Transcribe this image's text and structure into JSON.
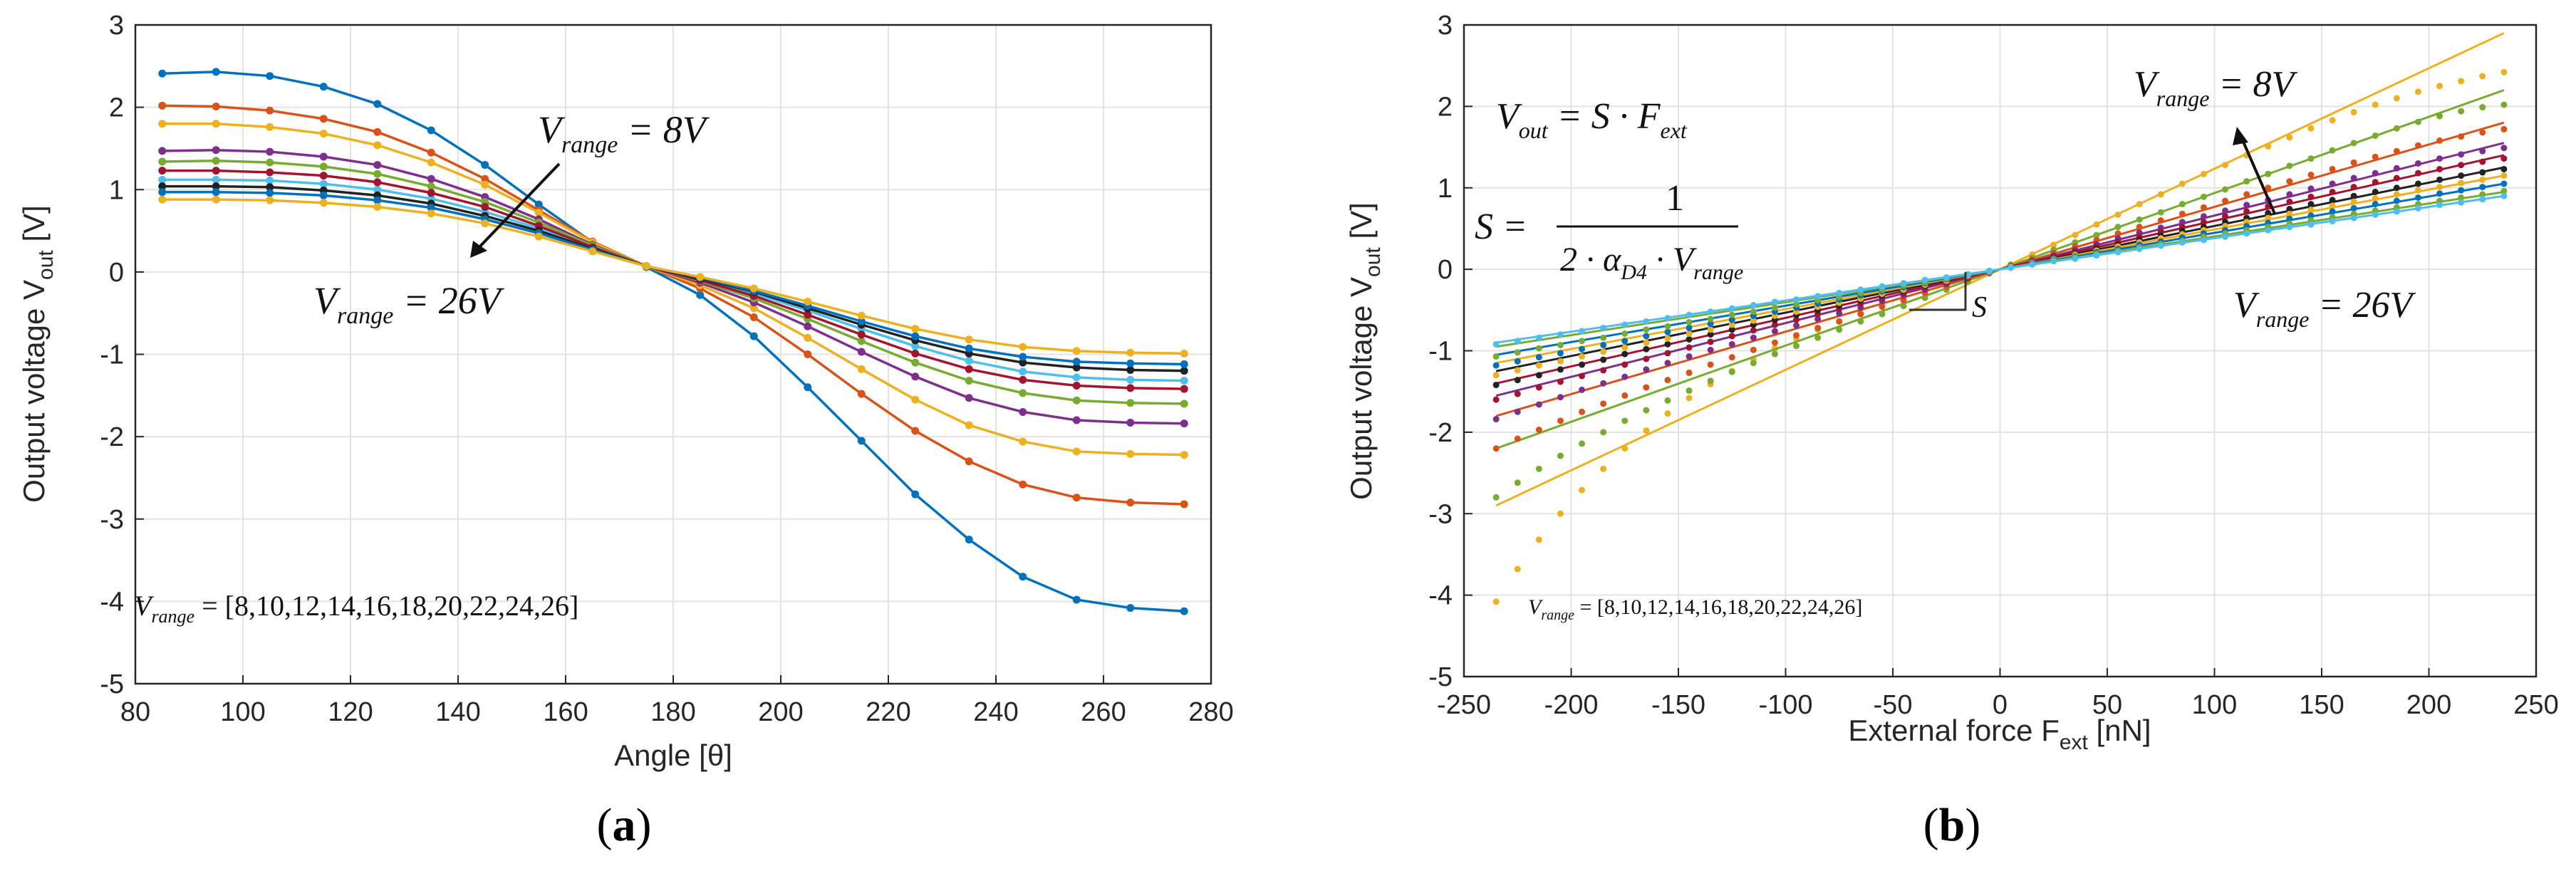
{
  "chart_data": [
    {
      "type": "line",
      "panel_label": "(a)",
      "caption": {
        "open": "(",
        "letter": "a",
        "close": ")"
      },
      "xlabel": "Angle [θ]",
      "ylabel": {
        "main": "Output voltage V",
        "sub": "out"
      },
      "xlim": [
        80,
        280
      ],
      "ylim": [
        -5,
        3
      ],
      "xticks": [
        80,
        100,
        120,
        140,
        160,
        180,
        200,
        220,
        240,
        260,
        280
      ],
      "yticks": [
        -5,
        -4,
        -3,
        -2,
        -1,
        0,
        1,
        2,
        3
      ],
      "grid": true,
      "x": [
        85,
        95,
        105,
        115,
        125,
        135,
        145,
        155,
        165,
        175,
        185,
        195,
        205,
        215,
        225,
        235,
        245,
        255,
        265,
        275
      ],
      "series": [
        {
          "name": "Vrange = 8",
          "color": "#0072bd",
          "values": [
            2.41,
            2.43,
            2.38,
            2.25,
            2.04,
            1.72,
            1.3,
            0.82,
            0.36,
            0.06,
            -0.28,
            -0.78,
            -1.4,
            -2.05,
            -2.7,
            -3.25,
            -3.7,
            -3.98,
            -4.08,
            -4.12
          ]
        },
        {
          "name": "Vrange = 10",
          "color": "#d95319",
          "values": [
            2.02,
            2.01,
            1.96,
            1.86,
            1.7,
            1.45,
            1.13,
            0.75,
            0.37,
            0.07,
            -0.2,
            -0.55,
            -1.0,
            -1.48,
            -1.93,
            -2.3,
            -2.58,
            -2.74,
            -2.8,
            -2.82
          ]
        },
        {
          "name": "Vrange = 12",
          "color": "#edb120",
          "values": [
            1.8,
            1.8,
            1.76,
            1.68,
            1.54,
            1.33,
            1.06,
            0.72,
            0.36,
            0.07,
            -0.16,
            -0.44,
            -0.8,
            -1.18,
            -1.55,
            -1.86,
            -2.06,
            -2.18,
            -2.21,
            -2.22
          ]
        },
        {
          "name": "Vrange = 14",
          "color": "#7e2f8e",
          "values": [
            1.47,
            1.48,
            1.46,
            1.4,
            1.3,
            1.13,
            0.91,
            0.64,
            0.33,
            0.07,
            -0.13,
            -0.37,
            -0.66,
            -0.97,
            -1.27,
            -1.53,
            -1.7,
            -1.8,
            -1.83,
            -1.84
          ]
        },
        {
          "name": "Vrange = 16",
          "color": "#77ac30",
          "values": [
            1.34,
            1.35,
            1.33,
            1.28,
            1.19,
            1.04,
            0.85,
            0.6,
            0.32,
            0.07,
            -0.11,
            -0.32,
            -0.57,
            -0.84,
            -1.1,
            -1.32,
            -1.47,
            -1.56,
            -1.59,
            -1.6
          ]
        },
        {
          "name": "Vrange = 18",
          "color": "#4dbeee",
          "values": [
            1.12,
            1.12,
            1.11,
            1.07,
            1.0,
            0.89,
            0.73,
            0.53,
            0.29,
            0.07,
            -0.09,
            -0.26,
            -0.47,
            -0.69,
            -0.9,
            -1.08,
            -1.21,
            -1.28,
            -1.31,
            -1.32
          ]
        },
        {
          "name": "Vrange = 20",
          "color": "#a2142f",
          "values": [
            1.23,
            1.23,
            1.21,
            1.17,
            1.09,
            0.96,
            0.79,
            0.56,
            0.3,
            0.07,
            -0.1,
            -0.29,
            -0.52,
            -0.76,
            -0.99,
            -1.18,
            -1.31,
            -1.38,
            -1.41,
            -1.42
          ]
        },
        {
          "name": "Vrange = 22",
          "color": "#222222",
          "values": [
            1.04,
            1.04,
            1.03,
            0.99,
            0.93,
            0.83,
            0.68,
            0.5,
            0.28,
            0.07,
            -0.08,
            -0.24,
            -0.44,
            -0.64,
            -0.83,
            -0.99,
            -1.1,
            -1.16,
            -1.19,
            -1.2
          ]
        },
        {
          "name": "Vrange = 24",
          "color": "#0072bd",
          "values": [
            0.97,
            0.97,
            0.96,
            0.93,
            0.87,
            0.78,
            0.64,
            0.47,
            0.27,
            0.07,
            -0.07,
            -0.23,
            -0.41,
            -0.6,
            -0.78,
            -0.93,
            -1.03,
            -1.09,
            -1.11,
            -1.12
          ]
        },
        {
          "name": "Vrange = 26",
          "color": "#edb120",
          "values": [
            0.88,
            0.88,
            0.87,
            0.84,
            0.79,
            0.71,
            0.59,
            0.43,
            0.25,
            0.07,
            -0.06,
            -0.2,
            -0.36,
            -0.53,
            -0.69,
            -0.82,
            -0.91,
            -0.96,
            -0.98,
            -0.99
          ]
        }
      ],
      "annotations": [
        {
          "V": "V",
          "sub": "range",
          "rest": " = 8V"
        },
        {
          "V": "V",
          "sub": "range",
          "rest": " = 26V"
        },
        {
          "V": "V",
          "sub": "range",
          "rest": " = [8,10,12,14,16,18,20,22,24,26]"
        }
      ]
    },
    {
      "type": "scatter",
      "panel_label": "(b)",
      "caption": {
        "open": "(",
        "letter": "b",
        "close": ")"
      },
      "xlabel": {
        "main": "External force F",
        "sub": "ext",
        "rest": " [nN]"
      },
      "ylabel": {
        "main": "Output voltage V",
        "sub": "out",
        "rest": " [V]"
      },
      "xlim": [
        -250,
        250
      ],
      "ylim": [
        -5,
        3
      ],
      "xticks": [
        -250,
        -200,
        -150,
        -100,
        -50,
        0,
        50,
        100,
        150,
        200,
        250
      ],
      "yticks": [
        -5,
        -4,
        -3,
        -2,
        -1,
        0,
        1,
        2,
        3
      ],
      "grid": true,
      "x": [
        -235,
        -225,
        -215,
        -205,
        -195,
        -185,
        -175,
        -165,
        -155,
        -145,
        -135,
        -125,
        -115,
        -105,
        -95,
        -85,
        -75,
        -65,
        -55,
        -45,
        -35,
        -25,
        -15,
        -5,
        5,
        15,
        25,
        35,
        45,
        55,
        65,
        75,
        85,
        95,
        105,
        115,
        125,
        135,
        145,
        155,
        165,
        175,
        185,
        195,
        205,
        215,
        225,
        235
      ],
      "series": [
        {
          "name": "Vrange = 8",
          "color": "#edb120",
          "slope": 0.01234,
          "fit_endpoints": [
            -2.9,
            2.9
          ],
          "values": [
            -4.08,
            -3.68,
            -3.32,
            -3.0,
            -2.71,
            -2.45,
            -2.2,
            -1.98,
            -1.77,
            -1.58,
            -1.41,
            -1.25,
            -1.1,
            -0.97,
            -0.85,
            -0.74,
            -0.64,
            -0.54,
            -0.45,
            -0.37,
            -0.29,
            -0.2,
            -0.12,
            -0.04,
            0.06,
            0.18,
            0.3,
            0.42,
            0.55,
            0.67,
            0.8,
            0.92,
            1.05,
            1.17,
            1.28,
            1.4,
            1.51,
            1.62,
            1.73,
            1.83,
            1.93,
            2.02,
            2.1,
            2.18,
            2.25,
            2.31,
            2.37,
            2.42
          ]
        },
        {
          "name": "Vrange = 10",
          "color": "#77ac30",
          "slope": 0.00936,
          "fit_endpoints": [
            -2.2,
            2.2
          ],
          "values": [
            -2.8,
            -2.62,
            -2.45,
            -2.29,
            -2.14,
            -2.0,
            -1.86,
            -1.73,
            -1.61,
            -1.49,
            -1.37,
            -1.26,
            -1.15,
            -1.04,
            -0.94,
            -0.84,
            -0.74,
            -0.64,
            -0.55,
            -0.45,
            -0.35,
            -0.25,
            -0.15,
            -0.05,
            0.05,
            0.14,
            0.24,
            0.33,
            0.42,
            0.52,
            0.61,
            0.7,
            0.8,
            0.89,
            0.98,
            1.08,
            1.17,
            1.27,
            1.36,
            1.46,
            1.55,
            1.64,
            1.73,
            1.81,
            1.88,
            1.94,
            1.99,
            2.02
          ]
        },
        {
          "name": "Vrange = 12",
          "color": "#d95319",
          "slope": 0.00766,
          "fit_endpoints": [
            -1.8,
            1.8
          ],
          "values": [
            -2.2,
            -2.08,
            -1.97,
            -1.86,
            -1.75,
            -1.65,
            -1.55,
            -1.45,
            -1.36,
            -1.27,
            -1.17,
            -1.08,
            -0.99,
            -0.9,
            -0.81,
            -0.72,
            -0.64,
            -0.55,
            -0.46,
            -0.38,
            -0.29,
            -0.21,
            -0.12,
            -0.04,
            0.04,
            0.12,
            0.2,
            0.28,
            0.36,
            0.44,
            0.52,
            0.6,
            0.68,
            0.76,
            0.84,
            0.92,
            1.0,
            1.08,
            1.16,
            1.23,
            1.31,
            1.38,
            1.45,
            1.52,
            1.58,
            1.63,
            1.68,
            1.72
          ]
        },
        {
          "name": "Vrange = 14",
          "color": "#7e2f8e",
          "slope": 0.0066,
          "fit_endpoints": [
            -1.55,
            1.55
          ],
          "values": [
            -1.84,
            -1.75,
            -1.66,
            -1.57,
            -1.48,
            -1.4,
            -1.32,
            -1.23,
            -1.15,
            -1.07,
            -0.99,
            -0.92,
            -0.84,
            -0.76,
            -0.69,
            -0.61,
            -0.54,
            -0.47,
            -0.39,
            -0.32,
            -0.25,
            -0.18,
            -0.11,
            -0.04,
            0.04,
            0.1,
            0.17,
            0.24,
            0.31,
            0.38,
            0.45,
            0.51,
            0.58,
            0.65,
            0.72,
            0.79,
            0.85,
            0.92,
            0.99,
            1.05,
            1.12,
            1.18,
            1.24,
            1.3,
            1.36,
            1.41,
            1.45,
            1.49
          ]
        },
        {
          "name": "Vrange = 16",
          "color": "#a2142f",
          "slope": 0.00596,
          "fit_endpoints": [
            -1.4,
            1.4
          ],
          "values": [
            -1.6,
            -1.53,
            -1.45,
            -1.38,
            -1.31,
            -1.24,
            -1.17,
            -1.1,
            -1.03,
            -0.96,
            -0.89,
            -0.82,
            -0.75,
            -0.68,
            -0.62,
            -0.55,
            -0.48,
            -0.42,
            -0.35,
            -0.29,
            -0.22,
            -0.16,
            -0.1,
            -0.03,
            0.03,
            0.09,
            0.15,
            0.22,
            0.28,
            0.34,
            0.4,
            0.46,
            0.52,
            0.58,
            0.65,
            0.71,
            0.77,
            0.83,
            0.89,
            0.95,
            1.01,
            1.07,
            1.12,
            1.18,
            1.23,
            1.28,
            1.32,
            1.36
          ]
        },
        {
          "name": "Vrange = 18",
          "color": "#222222",
          "slope": 0.00532,
          "fit_endpoints": [
            -1.25,
            1.25
          ],
          "values": [
            -1.42,
            -1.36,
            -1.3,
            -1.23,
            -1.17,
            -1.11,
            -1.04,
            -0.98,
            -0.92,
            -0.86,
            -0.8,
            -0.74,
            -0.68,
            -0.62,
            -0.56,
            -0.5,
            -0.44,
            -0.38,
            -0.32,
            -0.26,
            -0.2,
            -0.14,
            -0.08,
            -0.03,
            0.03,
            0.08,
            0.14,
            0.19,
            0.25,
            0.3,
            0.36,
            0.41,
            0.47,
            0.52,
            0.58,
            0.63,
            0.69,
            0.74,
            0.8,
            0.85,
            0.9,
            0.95,
            1.0,
            1.05,
            1.1,
            1.15,
            1.19,
            1.23
          ]
        },
        {
          "name": "Vrange = 20",
          "color": "#edb120",
          "slope": 0.00489,
          "fit_endpoints": [
            -1.15,
            1.15
          ],
          "values": [
            -1.3,
            -1.24,
            -1.18,
            -1.13,
            -1.07,
            -1.01,
            -0.96,
            -0.9,
            -0.85,
            -0.79,
            -0.74,
            -0.68,
            -0.63,
            -0.57,
            -0.52,
            -0.46,
            -0.41,
            -0.36,
            -0.3,
            -0.25,
            -0.19,
            -0.14,
            -0.08,
            -0.03,
            0.03,
            0.08,
            0.13,
            0.18,
            0.23,
            0.28,
            0.33,
            0.38,
            0.43,
            0.48,
            0.53,
            0.58,
            0.63,
            0.68,
            0.73,
            0.78,
            0.83,
            0.87,
            0.92,
            0.97,
            1.01,
            1.06,
            1.1,
            1.15
          ]
        },
        {
          "name": "Vrange = 22",
          "color": "#0072bd",
          "slope": 0.00447,
          "fit_endpoints": [
            -1.05,
            1.05
          ],
          "values": [
            -1.18,
            -1.13,
            -1.08,
            -1.03,
            -0.98,
            -0.93,
            -0.88,
            -0.82,
            -0.77,
            -0.72,
            -0.67,
            -0.62,
            -0.57,
            -0.52,
            -0.47,
            -0.42,
            -0.37,
            -0.32,
            -0.27,
            -0.22,
            -0.17,
            -0.12,
            -0.07,
            -0.02,
            0.02,
            0.07,
            0.12,
            0.16,
            0.21,
            0.25,
            0.3,
            0.34,
            0.39,
            0.44,
            0.48,
            0.53,
            0.57,
            0.62,
            0.66,
            0.71,
            0.75,
            0.8,
            0.84,
            0.88,
            0.93,
            0.97,
            1.01,
            1.05
          ]
        },
        {
          "name": "Vrange = 24",
          "color": "#77ac30",
          "slope": 0.00404,
          "fit_endpoints": [
            -0.95,
            0.95
          ],
          "values": [
            -1.07,
            -1.02,
            -0.97,
            -0.93,
            -0.88,
            -0.84,
            -0.79,
            -0.74,
            -0.7,
            -0.65,
            -0.61,
            -0.56,
            -0.52,
            -0.47,
            -0.43,
            -0.38,
            -0.34,
            -0.29,
            -0.25,
            -0.2,
            -0.16,
            -0.11,
            -0.07,
            -0.02,
            0.02,
            0.06,
            0.11,
            0.15,
            0.19,
            0.23,
            0.27,
            0.31,
            0.35,
            0.4,
            0.44,
            0.48,
            0.52,
            0.56,
            0.6,
            0.64,
            0.68,
            0.72,
            0.76,
            0.8,
            0.84,
            0.88,
            0.92,
            0.96
          ]
        },
        {
          "name": "Vrange = 26",
          "color": "#4dbeee",
          "slope": 0.00383,
          "fit_endpoints": [
            -0.9,
            0.9
          ],
          "values": [
            -0.92,
            -0.88,
            -0.84,
            -0.8,
            -0.76,
            -0.72,
            -0.68,
            -0.64,
            -0.6,
            -0.56,
            -0.52,
            -0.48,
            -0.44,
            -0.4,
            -0.37,
            -0.33,
            -0.29,
            -0.25,
            -0.21,
            -0.17,
            -0.13,
            -0.1,
            -0.06,
            -0.02,
            0.02,
            0.06,
            0.1,
            0.13,
            0.17,
            0.21,
            0.25,
            0.29,
            0.33,
            0.36,
            0.4,
            0.44,
            0.48,
            0.52,
            0.55,
            0.59,
            0.63,
            0.67,
            0.71,
            0.75,
            0.79,
            0.82,
            0.86,
            0.9
          ]
        }
      ],
      "equations": {
        "eq1": {
          "V": "V",
          "sub1": "out",
          "mid": " = S · F",
          "sub2": "ext"
        },
        "eq2": {
          "lhs": "S =",
          "num": "1",
          "den_a": "2 · α",
          "den_sub": "D4",
          "den_b": " · V",
          "den_sub2": "range"
        },
        "slope_label": "S"
      },
      "annotations": [
        {
          "V": "V",
          "sub": "range",
          "rest": " = 8V"
        },
        {
          "V": "V",
          "sub": "range",
          "rest": " = 26V"
        },
        {
          "V": "V",
          "sub": "range",
          "rest": " = [8,10,12,14,16,18,20,22,24,26]"
        }
      ]
    }
  ]
}
